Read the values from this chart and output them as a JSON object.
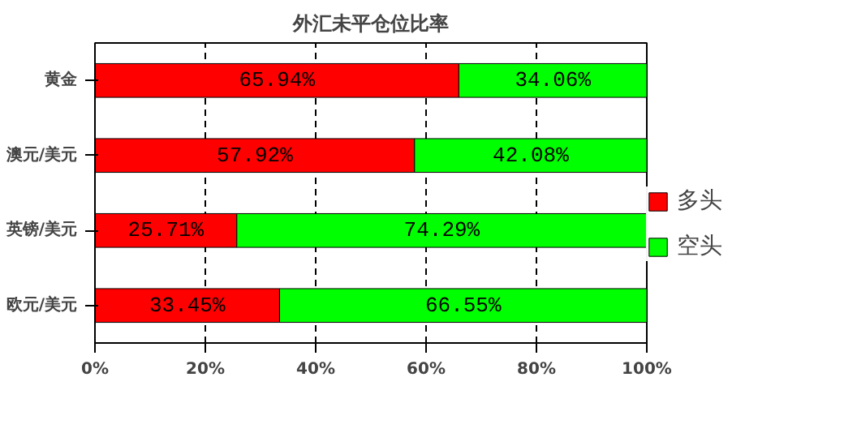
{
  "chart_data": {
    "type": "bar",
    "title": "外汇未平仓位比率",
    "orientation": "horizontal",
    "stacked": true,
    "categories": [
      "黄金",
      "澳元/美元",
      "英镑/美元",
      "欧元/美元"
    ],
    "series": [
      {
        "name": "多头",
        "color": "#ff0000",
        "values": [
          65.94,
          57.92,
          25.71,
          33.45
        ],
        "value_labels": [
          "65.94%",
          "57.92%",
          "25.71%",
          "33.45%"
        ]
      },
      {
        "name": "空头",
        "color": "#00ff00",
        "values": [
          34.06,
          42.08,
          74.29,
          66.55
        ],
        "value_labels": [
          "34.06%",
          "42.08%",
          "74.29%",
          "66.55%"
        ]
      }
    ],
    "xlim": [
      0,
      100
    ],
    "xticks": [
      {
        "value": 0,
        "label": "0%"
      },
      {
        "value": 20,
        "label": "20%"
      },
      {
        "value": 40,
        "label": "40%"
      },
      {
        "value": 60,
        "label": "60%"
      },
      {
        "value": 80,
        "label": "80%"
      },
      {
        "value": 100,
        "label": "100%"
      }
    ],
    "grid": "x",
    "legend": "right"
  }
}
